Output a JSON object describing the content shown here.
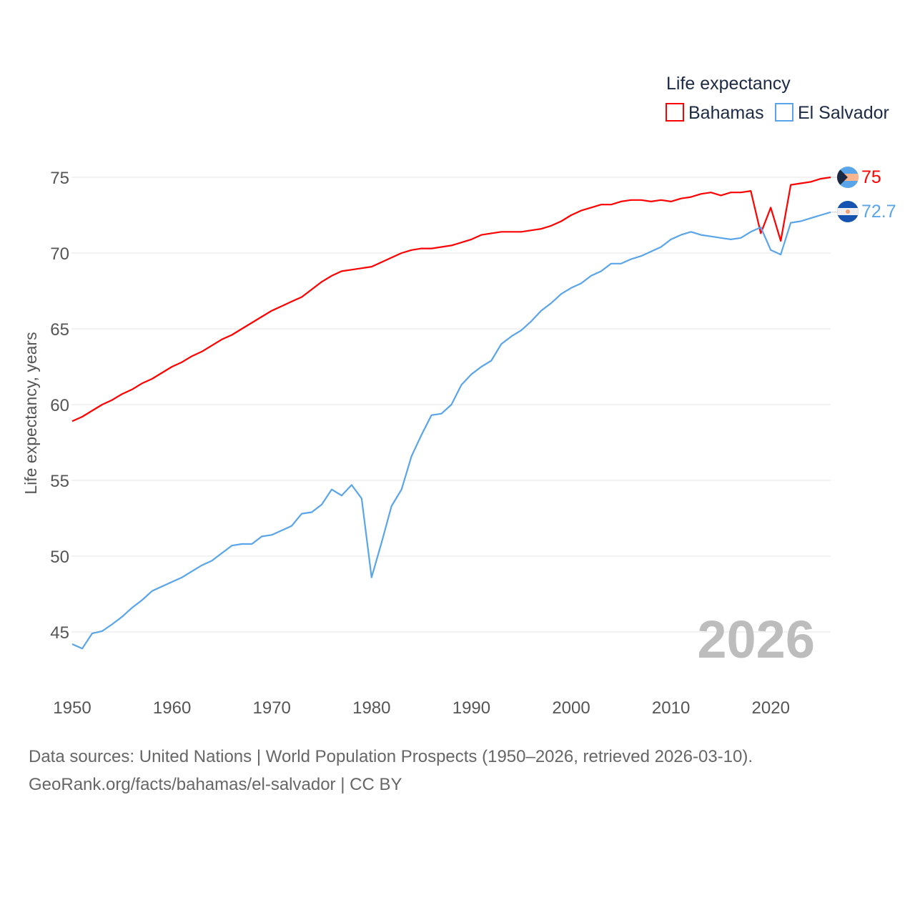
{
  "chart_data": {
    "type": "line",
    "title": "Life expectancy",
    "xlabel": "",
    "ylabel": "Life expectancy, years",
    "xlim": [
      1950,
      2026
    ],
    "ylim": [
      43,
      76
    ],
    "y_ticks": [
      45,
      50,
      55,
      60,
      65,
      70,
      75
    ],
    "x_ticks": [
      1950,
      1960,
      1970,
      1980,
      1990,
      2000,
      2010,
      2020
    ],
    "grid": true,
    "legend_placement": "top-right",
    "current_year_label": "2026",
    "x": [
      1950,
      1951,
      1952,
      1953,
      1954,
      1955,
      1956,
      1957,
      1958,
      1959,
      1960,
      1961,
      1962,
      1963,
      1964,
      1965,
      1966,
      1967,
      1968,
      1969,
      1970,
      1971,
      1972,
      1973,
      1974,
      1975,
      1976,
      1977,
      1978,
      1979,
      1980,
      1981,
      1982,
      1983,
      1984,
      1985,
      1986,
      1987,
      1988,
      1989,
      1990,
      1991,
      1992,
      1993,
      1994,
      1995,
      1996,
      1997,
      1998,
      1999,
      2000,
      2001,
      2002,
      2003,
      2004,
      2005,
      2006,
      2007,
      2008,
      2009,
      2010,
      2011,
      2012,
      2013,
      2014,
      2015,
      2016,
      2017,
      2018,
      2019,
      2020,
      2021,
      2022,
      2023,
      2024,
      2025,
      2026
    ],
    "series": [
      {
        "name": "Bahamas",
        "color": "#ff0000",
        "end_label": "75",
        "values": [
          58.9,
          59.2,
          59.6,
          60.0,
          60.3,
          60.7,
          61.0,
          61.4,
          61.7,
          62.1,
          62.5,
          62.8,
          63.2,
          63.5,
          63.9,
          64.3,
          64.6,
          65.0,
          65.4,
          65.8,
          66.2,
          66.5,
          66.8,
          67.1,
          67.6,
          68.1,
          68.5,
          68.8,
          68.9,
          69.0,
          69.1,
          69.4,
          69.7,
          70.0,
          70.2,
          70.3,
          70.3,
          70.4,
          70.5,
          70.7,
          70.9,
          71.2,
          71.3,
          71.4,
          71.4,
          71.4,
          71.5,
          71.6,
          71.8,
          72.1,
          72.5,
          72.8,
          73.0,
          73.2,
          73.2,
          73.4,
          73.5,
          73.5,
          73.4,
          73.5,
          73.4,
          73.6,
          73.7,
          73.9,
          74.0,
          73.8,
          74.0,
          74.0,
          74.1,
          71.3,
          73.0,
          70.8,
          74.5,
          74.6,
          74.7,
          74.9,
          75.0
        ]
      },
      {
        "name": "El Salvador",
        "color": "#5aa5ea",
        "end_label": "72.7",
        "values": [
          44.2,
          43.9,
          44.9,
          45.05,
          45.5,
          46.0,
          46.6,
          47.1,
          47.7,
          48.0,
          48.3,
          48.6,
          49.0,
          49.4,
          49.7,
          50.2,
          50.7,
          50.8,
          50.8,
          51.3,
          51.4,
          51.7,
          52.0,
          52.8,
          52.9,
          53.4,
          54.4,
          54.0,
          54.7,
          53.8,
          48.6,
          50.9,
          53.3,
          54.4,
          56.6,
          58.0,
          59.3,
          59.4,
          60.0,
          61.3,
          62.0,
          62.5,
          62.9,
          64.0,
          64.5,
          64.9,
          65.5,
          66.2,
          66.7,
          67.3,
          67.7,
          68.0,
          68.5,
          68.8,
          69.3,
          69.3,
          69.6,
          69.8,
          70.1,
          70.4,
          70.9,
          71.2,
          71.4,
          71.2,
          71.1,
          71.0,
          70.9,
          71.0,
          71.4,
          71.7,
          70.2,
          69.9,
          72.0,
          72.1,
          72.3,
          72.5,
          72.7
        ]
      }
    ]
  },
  "footer": {
    "line1": "Data sources: United Nations | World Population Prospects (1950–2026, retrieved 2026-03-10).",
    "line2": "GeoRank.org/facts/bahamas/el-salvador | CC BY"
  }
}
